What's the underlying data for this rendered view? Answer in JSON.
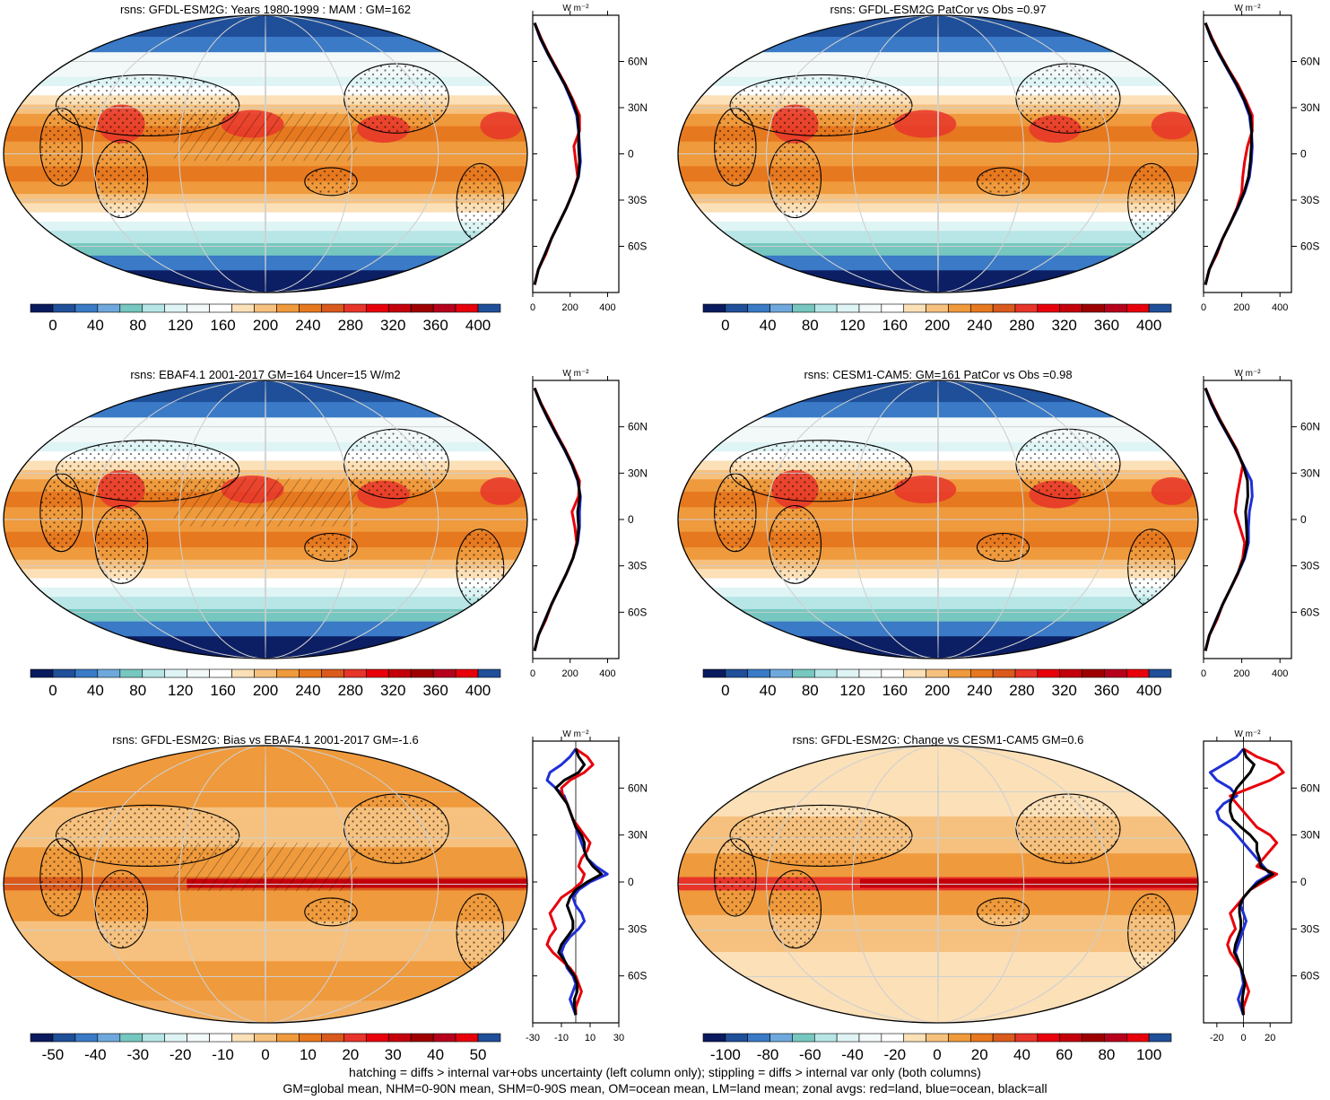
{
  "figure": {
    "footer_lines": [
      "hatching = diffs > internal var+obs uncertainty (left column only); stippling = diffs > internal var only (both columns)",
      "GM=global mean, NHM=0-90N mean, SHM=0-90S mean, OM=ocean mean, LM=land mean; zonal avgs: red=land, blue=ocean, black=all"
    ],
    "zonal_unit": "W m⁻²",
    "lat_labels": [
      "60N",
      "30N",
      "0",
      "30S",
      "60S"
    ],
    "lat_values": [
      60,
      30,
      0,
      -30,
      -60
    ],
    "zonal_colors": {
      "land": "#e8000b",
      "ocean": "#1f2fd6",
      "all": "#000000"
    },
    "colormaps": {
      "full": [
        "#0a1a5e",
        "#1f4f99",
        "#3a7ac6",
        "#6fa8dc",
        "#76c7c0",
        "#b8e6e6",
        "#dff4f5",
        "#f3f9f9",
        "#ffffff",
        "#fbe0b8",
        "#f6c17e",
        "#ef9a3c",
        "#e6781f",
        "#d95a1c",
        "#e8352a",
        "#e8000b",
        "#c4000b",
        "#9e0000",
        "#b7001c",
        "#e8000b",
        "#1f4f99"
      ],
      "diff": [
        "#0a1a5e",
        "#1f4f99",
        "#3a7ac6",
        "#6fa8dc",
        "#76c7c0",
        "#b8e6e6",
        "#dff4f5",
        "#f3f9f9",
        "#ffffff",
        "#fbe0b8",
        "#f6c17e",
        "#ef9a3c",
        "#e6781f",
        "#d95a1c",
        "#e8352a",
        "#e8000b",
        "#c4000b",
        "#9e0000",
        "#b7001c",
        "#e8000b",
        "#1f4f99"
      ]
    }
  },
  "chart_data": [
    {
      "id": "p1",
      "type": "heatmap",
      "title": "rsns: GFDL-ESM2G: Years 1980-1999 : MAM : GM=162",
      "colorbar_ticks": [
        0,
        40,
        80,
        120,
        160,
        200,
        240,
        280,
        320,
        360,
        400
      ],
      "colorbar_range": [
        0,
        400
      ],
      "zonal": {
        "xlim": [
          0,
          460
        ],
        "xticks": [
          0,
          200,
          400
        ],
        "lat": [
          85,
          75,
          65,
          55,
          45,
          35,
          25,
          15,
          5,
          -5,
          -15,
          -25,
          -35,
          -45,
          -55,
          -65,
          -75,
          -85
        ],
        "land": [
          10,
          45,
          85,
          130,
          175,
          215,
          250,
          250,
          220,
          230,
          240,
          215,
          180,
          140,
          100,
          70,
          30,
          10
        ],
        "ocean": [
          10,
          40,
          80,
          125,
          170,
          205,
          235,
          245,
          250,
          255,
          245,
          215,
          180,
          140,
          100,
          65,
          30,
          10
        ],
        "all": [
          10,
          42,
          82,
          127,
          172,
          210,
          240,
          246,
          245,
          250,
          243,
          215,
          180,
          140,
          100,
          66,
          30,
          10
        ]
      }
    },
    {
      "id": "p2",
      "type": "heatmap",
      "title": "rsns: GFDL-ESM2G PatCor vs Obs =0.97",
      "colorbar_ticks": [
        0,
        40,
        80,
        120,
        160,
        200,
        240,
        280,
        320,
        360,
        400
      ],
      "colorbar_range": [
        0,
        400
      ],
      "zonal": {
        "xlim": [
          0,
          460
        ],
        "xticks": [
          0,
          200,
          400
        ],
        "lat": [
          85,
          75,
          65,
          55,
          45,
          35,
          25,
          15,
          5,
          -5,
          -15,
          -25,
          -35,
          -45,
          -55,
          -65,
          -75,
          -85
        ],
        "land": [
          10,
          45,
          85,
          130,
          180,
          220,
          255,
          255,
          230,
          215,
          205,
          200,
          175,
          140,
          100,
          70,
          30,
          10
        ],
        "ocean": [
          10,
          40,
          80,
          125,
          170,
          210,
          240,
          250,
          255,
          250,
          240,
          215,
          180,
          140,
          100,
          65,
          30,
          10
        ],
        "all": [
          10,
          42,
          82,
          127,
          174,
          214,
          245,
          252,
          250,
          245,
          235,
          212,
          178,
          140,
          100,
          66,
          30,
          10
        ]
      }
    },
    {
      "id": "p3",
      "type": "heatmap",
      "title": "rsns: EBAF4.1 2001-2017 GM=164 Uncer=15 W/m2",
      "colorbar_ticks": [
        0,
        40,
        80,
        120,
        160,
        200,
        240,
        280,
        320,
        360,
        400
      ],
      "colorbar_range": [
        0,
        400
      ],
      "zonal": {
        "xlim": [
          0,
          460
        ],
        "xticks": [
          0,
          200,
          400
        ],
        "lat": [
          85,
          75,
          65,
          55,
          45,
          35,
          25,
          15,
          5,
          -5,
          -15,
          -25,
          -35,
          -45,
          -55,
          -65,
          -75,
          -85
        ],
        "land": [
          10,
          45,
          88,
          130,
          175,
          215,
          250,
          245,
          210,
          225,
          235,
          215,
          180,
          140,
          100,
          70,
          30,
          10
        ],
        "ocean": [
          10,
          42,
          82,
          125,
          170,
          210,
          240,
          255,
          250,
          250,
          240,
          215,
          180,
          140,
          100,
          65,
          30,
          10
        ],
        "all": [
          10,
          43,
          84,
          127,
          172,
          212,
          243,
          252,
          240,
          245,
          238,
          215,
          180,
          140,
          100,
          66,
          30,
          10
        ]
      }
    },
    {
      "id": "p4",
      "type": "heatmap",
      "title": "rsns: CESM1-CAM5: GM=161 PatCor vs Obs =0.98",
      "colorbar_ticks": [
        0,
        40,
        80,
        120,
        160,
        200,
        240,
        280,
        320,
        360,
        400
      ],
      "colorbar_range": [
        0,
        400
      ],
      "zonal": {
        "xlim": [
          0,
          460
        ],
        "xticks": [
          0,
          200,
          400
        ],
        "lat": [
          85,
          75,
          65,
          55,
          45,
          35,
          25,
          15,
          5,
          -5,
          -15,
          -25,
          -35,
          -45,
          -55,
          -65,
          -75,
          -85
        ],
        "land": [
          10,
          45,
          85,
          130,
          175,
          205,
          190,
          175,
          165,
          190,
          215,
          205,
          180,
          140,
          100,
          70,
          30,
          10
        ],
        "ocean": [
          10,
          40,
          80,
          125,
          170,
          210,
          250,
          255,
          240,
          235,
          235,
          215,
          180,
          140,
          100,
          65,
          30,
          10
        ],
        "all": [
          10,
          42,
          82,
          127,
          172,
          208,
          230,
          232,
          220,
          225,
          228,
          212,
          178,
          140,
          100,
          66,
          30,
          10
        ]
      }
    },
    {
      "id": "p5",
      "type": "heatmap",
      "title": "rsns: GFDL-ESM2G: Bias vs EBAF4.1 2001-2017 GM=-1.6",
      "colorbar_ticks": [
        -50,
        -40,
        -30,
        -20,
        -10,
        0,
        10,
        20,
        30,
        40,
        50
      ],
      "colorbar_range": [
        -50,
        50
      ],
      "zonal": {
        "xlim": [
          -30,
          30
        ],
        "xticks": [
          -30,
          -10,
          10,
          30
        ],
        "lat": [
          85,
          80,
          75,
          70,
          65,
          60,
          55,
          50,
          45,
          40,
          35,
          30,
          25,
          20,
          15,
          10,
          5,
          0,
          -5,
          -10,
          -15,
          -20,
          -25,
          -30,
          -35,
          -40,
          -45,
          -50,
          -55,
          -60,
          -65,
          -70,
          -75,
          -80,
          -85
        ],
        "land": [
          0,
          8,
          12,
          6,
          -4,
          -10,
          -9,
          -6,
          -4,
          -2,
          2,
          6,
          10,
          8,
          4,
          2,
          6,
          4,
          -2,
          -10,
          -14,
          -18,
          -16,
          -14,
          -18,
          -20,
          -16,
          -10,
          -4,
          0,
          2,
          4,
          2,
          0,
          0
        ],
        "ocean": [
          0,
          -4,
          -10,
          -18,
          -20,
          -14,
          -8,
          -6,
          -4,
          -2,
          0,
          2,
          4,
          6,
          8,
          14,
          22,
          10,
          2,
          -2,
          0,
          4,
          6,
          2,
          -4,
          -8,
          -10,
          -8,
          -6,
          -2,
          0,
          -2,
          -4,
          -2,
          0
        ],
        "all": [
          0,
          2,
          6,
          2,
          -8,
          -14,
          -10,
          -6,
          -4,
          -2,
          0,
          4,
          6,
          6,
          8,
          12,
          18,
          8,
          0,
          -4,
          -6,
          -4,
          -2,
          -2,
          -6,
          -10,
          -12,
          -8,
          -5,
          -1,
          1,
          1,
          -1,
          -1,
          0
        ]
      }
    },
    {
      "id": "p6",
      "type": "heatmap",
      "title": "rsns: GFDL-ESM2G: Change vs CESM1-CAM5 GM=0.6",
      "colorbar_ticks": [
        -100,
        -80,
        -60,
        -40,
        -20,
        0,
        20,
        40,
        60,
        80,
        100
      ],
      "colorbar_range": [
        -100,
        100
      ],
      "zonal": {
        "xlim": [
          -30,
          36
        ],
        "xticks": [
          -20,
          0,
          20
        ],
        "lat": [
          85,
          80,
          75,
          70,
          65,
          60,
          55,
          50,
          45,
          40,
          35,
          30,
          25,
          20,
          15,
          10,
          5,
          0,
          -5,
          -10,
          -15,
          -20,
          -25,
          -30,
          -35,
          -40,
          -45,
          -50,
          -55,
          -60,
          -65,
          -70,
          -75,
          -80,
          -85
        ],
        "land": [
          0,
          10,
          25,
          30,
          20,
          5,
          -10,
          -5,
          0,
          5,
          10,
          20,
          25,
          20,
          15,
          10,
          25,
          15,
          5,
          0,
          -5,
          -10,
          -8,
          -6,
          -10,
          -12,
          -10,
          -6,
          -2,
          0,
          2,
          4,
          2,
          0,
          0
        ],
        "ocean": [
          0,
          -5,
          -15,
          -25,
          -20,
          -10,
          -5,
          -15,
          -20,
          -18,
          -10,
          -5,
          0,
          5,
          10,
          15,
          20,
          10,
          5,
          0,
          -2,
          0,
          2,
          0,
          -2,
          -4,
          -6,
          -4,
          -2,
          -1,
          0,
          -2,
          -4,
          -2,
          0
        ],
        "all": [
          0,
          2,
          8,
          5,
          0,
          -5,
          -8,
          -10,
          -10,
          -8,
          -2,
          5,
          10,
          10,
          12,
          13,
          22,
          12,
          5,
          0,
          -3,
          -3,
          -2,
          -2,
          -4,
          -6,
          -7,
          -4,
          -2,
          0,
          1,
          0,
          -1,
          -1,
          0
        ]
      }
    }
  ]
}
